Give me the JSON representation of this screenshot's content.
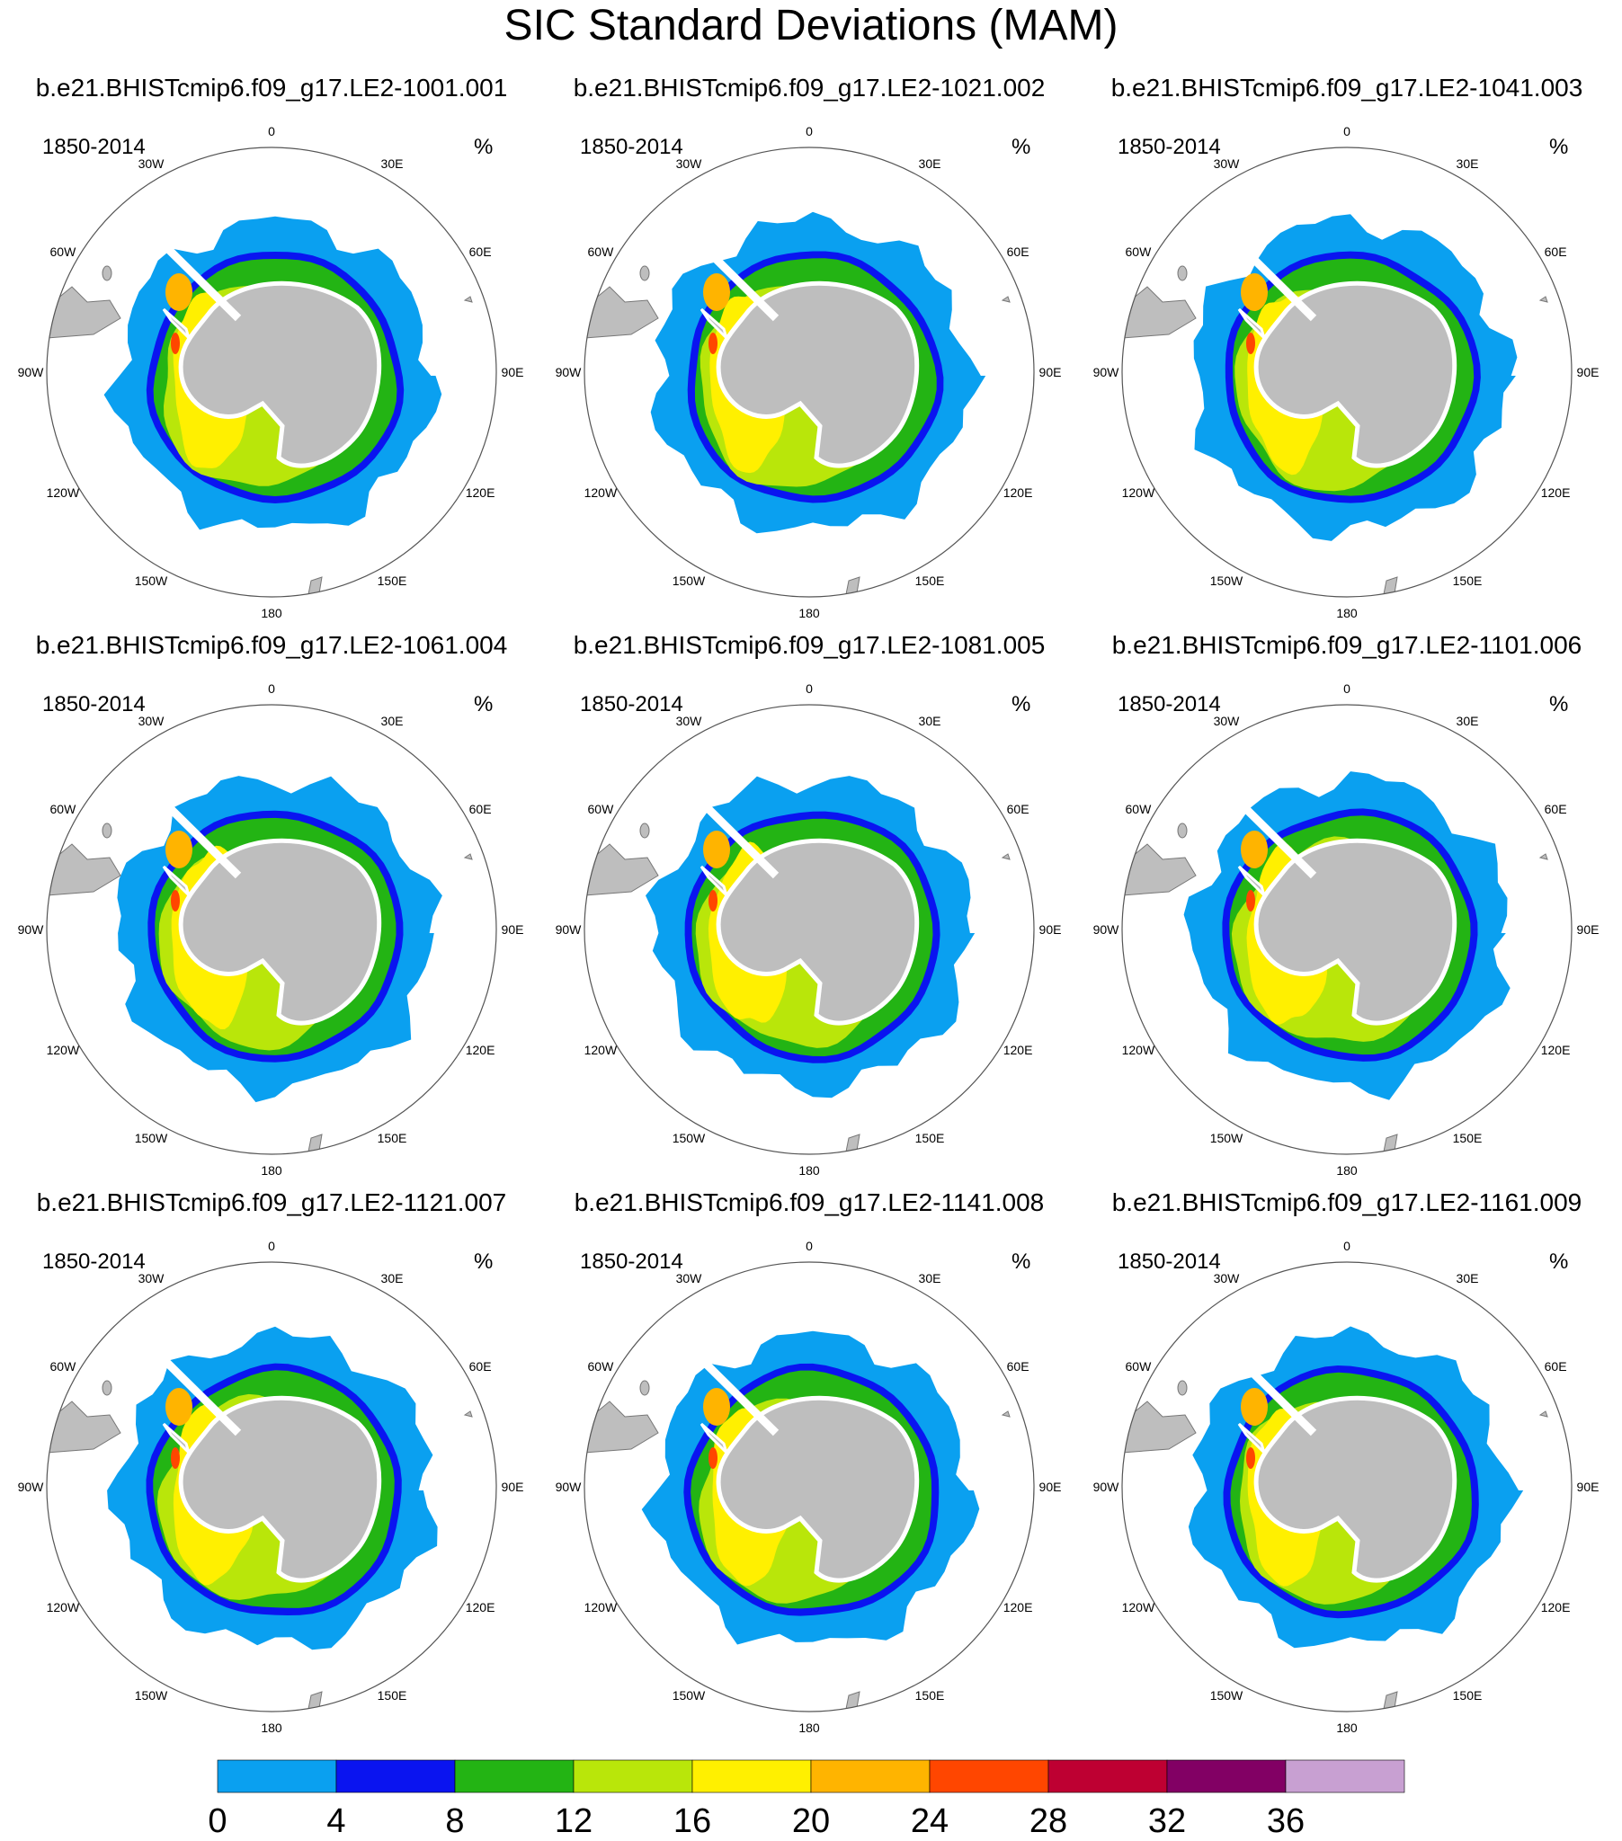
{
  "title": "SIC Standard Deviations (MAM)",
  "panels": [
    {
      "case": "b.e21.BHISTcmip6.f09_g17.LE2-1001.001",
      "period": "1850-2014",
      "units": "%"
    },
    {
      "case": "b.e21.BHISTcmip6.f09_g17.LE2-1021.002",
      "period": "1850-2014",
      "units": "%"
    },
    {
      "case": "b.e21.BHISTcmip6.f09_g17.LE2-1041.003",
      "period": "1850-2014",
      "units": "%"
    },
    {
      "case": "b.e21.BHISTcmip6.f09_g17.LE2-1061.004",
      "period": "1850-2014",
      "units": "%"
    },
    {
      "case": "b.e21.BHISTcmip6.f09_g17.LE2-1081.005",
      "period": "1850-2014",
      "units": "%"
    },
    {
      "case": "b.e21.BHISTcmip6.f09_g17.LE2-1101.006",
      "period": "1850-2014",
      "units": "%"
    },
    {
      "case": "b.e21.BHISTcmip6.f09_g17.LE2-1121.007",
      "period": "1850-2014",
      "units": "%"
    },
    {
      "case": "b.e21.BHISTcmip6.f09_g17.LE2-1141.008",
      "period": "1850-2014",
      "units": "%"
    },
    {
      "case": "b.e21.BHISTcmip6.f09_g17.LE2-1161.009",
      "period": "1850-2014",
      "units": "%"
    }
  ],
  "longitude_labels": [
    "0",
    "30E",
    "60E",
    "90E",
    "120E",
    "150E",
    "180",
    "150W",
    "120W",
    "90W",
    "60W",
    "30W"
  ],
  "colorbar": {
    "colors": [
      "#0aa0f0",
      "#0a14f0",
      "#23b414",
      "#b9e60a",
      "#fff000",
      "#ffb400",
      "#ff4600",
      "#be0032",
      "#820064",
      "#c8a0d2"
    ],
    "labels": [
      "0",
      "4",
      "8",
      "12",
      "16",
      "20",
      "24",
      "28",
      "32",
      "36"
    ]
  },
  "colors": {
    "land": "#bebebe",
    "ring_outline": "#555555"
  }
}
